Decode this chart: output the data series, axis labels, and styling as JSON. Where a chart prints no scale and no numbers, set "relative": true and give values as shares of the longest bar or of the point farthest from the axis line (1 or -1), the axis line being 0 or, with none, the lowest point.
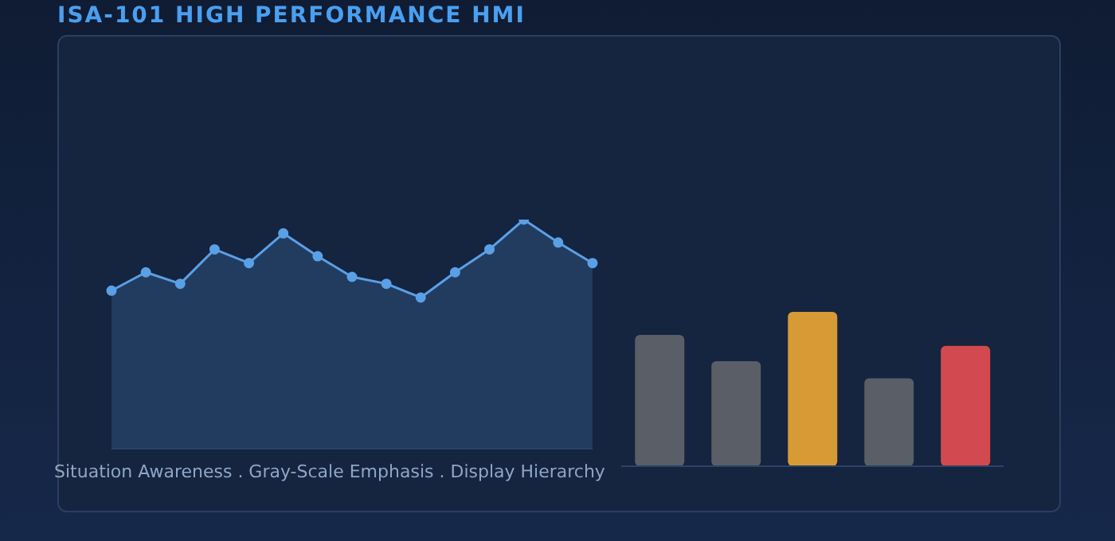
{
  "chart_data": [
    {
      "type": "area",
      "title": "ISA-101 HIGH PERFORMANCE HMI",
      "xlabel": "Situation Awareness . Gray-Scale Emphasis . Display Hierarchy",
      "relative": true,
      "marker": "circle",
      "categories": [
        null,
        null,
        null,
        null,
        null,
        null,
        null,
        null,
        null,
        null,
        null,
        null,
        null,
        null,
        null
      ],
      "series": [
        {
          "color": "#5aa0e6",
          "values": [
            0.69,
            0.77,
            0.72,
            0.87,
            0.81,
            0.94,
            0.84,
            0.75,
            0.72,
            0.66,
            0.77,
            0.87,
            1,
            0.9,
            0.81
          ]
        }
      ]
    },
    {
      "type": "bar",
      "relative": true,
      "categories": [
        null,
        null,
        null,
        null,
        null
      ],
      "values": [
        0.85,
        0.68,
        1,
        0.57,
        0.78
      ],
      "colors": [
        "#5a5e66",
        "#5a5e66",
        "#d89a35",
        "#5a5e66",
        "#d24a4f"
      ]
    }
  ]
}
